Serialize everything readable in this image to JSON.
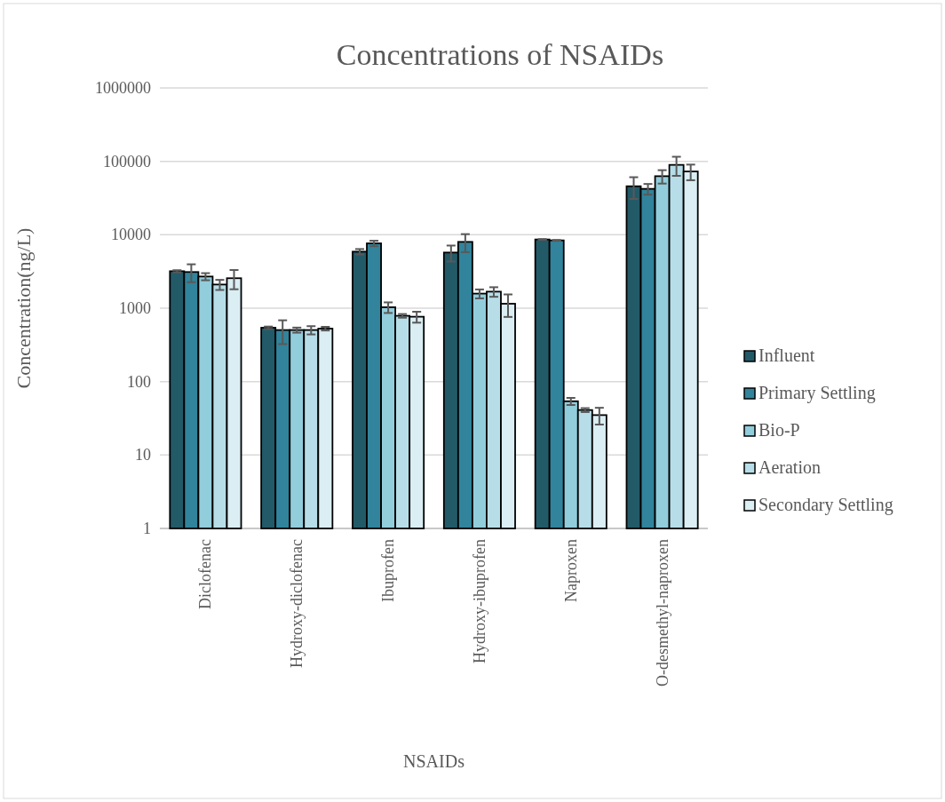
{
  "chart_data": {
    "type": "bar",
    "title": "Concentrations of NSAIDs",
    "xlabel": "NSAIDs",
    "ylabel": "Concentration(ng/L)",
    "categories": [
      "Diclofenac",
      "Hydroxy-diclofenac",
      "Ibuprofen",
      "Hydroxy-ibuprofen",
      "Naproxen",
      "O-desmethyl-naproxen"
    ],
    "series": [
      {
        "name": "Influent",
        "color": "#235a68",
        "values": [
          3190,
          542,
          5890,
          5730,
          8630,
          45800
        ],
        "errors": [
          100,
          20,
          500,
          1400,
          100,
          15000
        ]
      },
      {
        "name": "Primary Settling",
        "color": "#31849b",
        "values": [
          3110,
          504,
          7640,
          8000,
          8390,
          42200
        ],
        "errors": [
          850,
          180,
          650,
          2200,
          100,
          7000
        ]
      },
      {
        "name": "Bio-P",
        "color": "#92cddc",
        "values": [
          2700,
          504,
          1030,
          1580,
          54,
          62800
        ],
        "errors": [
          300,
          40,
          170,
          220,
          6,
          13000
        ]
      },
      {
        "name": "Aeration",
        "color": "#b7dee8",
        "values": [
          2100,
          504,
          787,
          1680,
          41,
          89500
        ],
        "errors": [
          330,
          65,
          45,
          250,
          2.5,
          26000
        ]
      },
      {
        "name": "Secondary Settling",
        "color": "#daeef3",
        "values": [
          2560,
          527,
          765,
          1150,
          35,
          72800
        ],
        "errors": [
          750,
          30,
          130,
          390,
          9,
          17500
        ]
      }
    ],
    "log": "y",
    "ylim": [
      1,
      1000000
    ],
    "yticks": [
      1,
      10,
      100,
      1000,
      10000,
      100000,
      1000000
    ],
    "grid": "y",
    "legend": "right"
  }
}
